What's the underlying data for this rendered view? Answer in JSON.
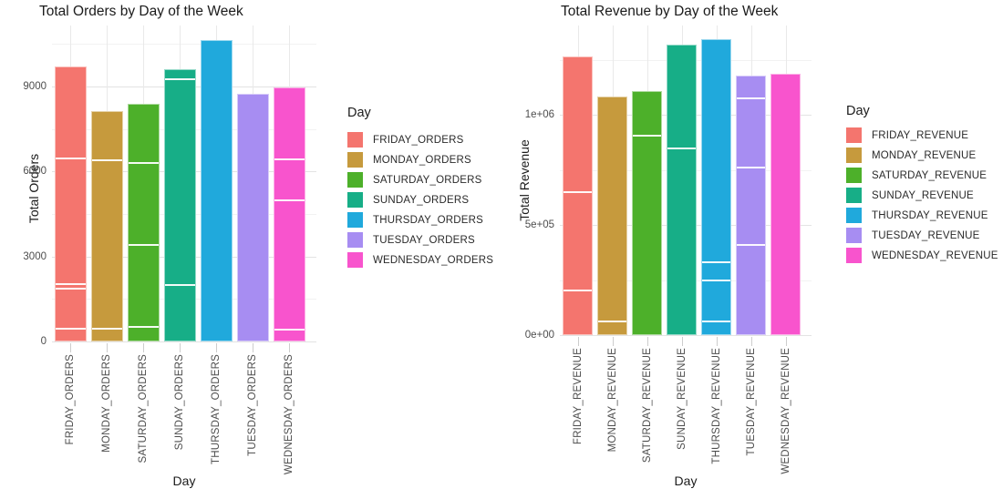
{
  "style": {
    "background": "#ffffff",
    "major_gridline": "#e3e3e3",
    "minor_gridline": "#f2f2f2",
    "tick_mark": "#cdcdcd",
    "axis_text": "#4d4d4d",
    "title_text": "#1b1b1b"
  },
  "chart_data": [
    {
      "type": "bar",
      "title": "Total Orders by Day of the Week",
      "xlabel": "Day",
      "ylabel": "Total Orders",
      "legend_title": "Day",
      "legend_position": "right",
      "grid": true,
      "categories": [
        "FRIDAY_ORDERS",
        "MONDAY_ORDERS",
        "SATURDAY_ORDERS",
        "SUNDAY_ORDERS",
        "THURSDAY_ORDERS",
        "TUESDAY_ORDERS",
        "WEDNESDAY_ORDERS"
      ],
      "values": [
        9700,
        8120,
        8380,
        9600,
        10620,
        8730,
        8955
      ],
      "stack_boundaries": [
        [
          480,
          1890,
          2050,
          6480
        ],
        [
          480,
          6420
        ],
        [
          545,
          3435,
          6320
        ],
        [
          2020,
          9275
        ],
        [],
        [],
        [
          450,
          5005,
          6450
        ]
      ],
      "colors": [
        "#F4756E",
        "#C69A3D",
        "#4DB02A",
        "#17AE87",
        "#20A9DC",
        "#A78DF2",
        "#F854CD"
      ],
      "yticks": [
        {
          "label": "0",
          "value": 0
        },
        {
          "label": "3000",
          "value": 3000
        },
        {
          "label": "6000",
          "value": 6000
        },
        {
          "label": "9000",
          "value": 9000
        }
      ],
      "minor_gridlines": [
        1500,
        4500,
        7500,
        10500
      ],
      "ylim": [
        0,
        11150
      ]
    },
    {
      "type": "bar",
      "title": "Total Revenue by Day of the Week",
      "xlabel": "Day",
      "ylabel": "Total Revenue",
      "legend_title": "Day",
      "legend_position": "right",
      "grid": true,
      "categories": [
        "FRIDAY_REVENUE",
        "MONDAY_REVENUE",
        "SATURDAY_REVENUE",
        "SUNDAY_REVENUE",
        "THURSDAY_REVENUE",
        "TUESDAY_REVENUE",
        "WEDNESDAY_REVENUE"
      ],
      "values": [
        1265000,
        1083000,
        1108000,
        1318000,
        1343000,
        1178000,
        1186000
      ],
      "stack_boundaries": [
        [
          207000,
          653000
        ],
        [
          65000
        ],
        [
          909000
        ],
        [
          851000
        ],
        [
          66000,
          252000,
          335000
        ],
        [
          413000,
          764000,
          1078000
        ],
        []
      ],
      "colors": [
        "#F4756E",
        "#C69A3D",
        "#4DB02A",
        "#17AE87",
        "#20A9DC",
        "#A78DF2",
        "#F854CD"
      ],
      "yticks": [
        {
          "label": "0e+00",
          "value": 0
        },
        {
          "label": "5e+05",
          "value": 500000
        },
        {
          "label": "1e+06",
          "value": 1000000
        }
      ],
      "minor_gridlines": [
        250000,
        750000,
        1250000
      ],
      "ylim": [
        0,
        1405000
      ]
    }
  ]
}
